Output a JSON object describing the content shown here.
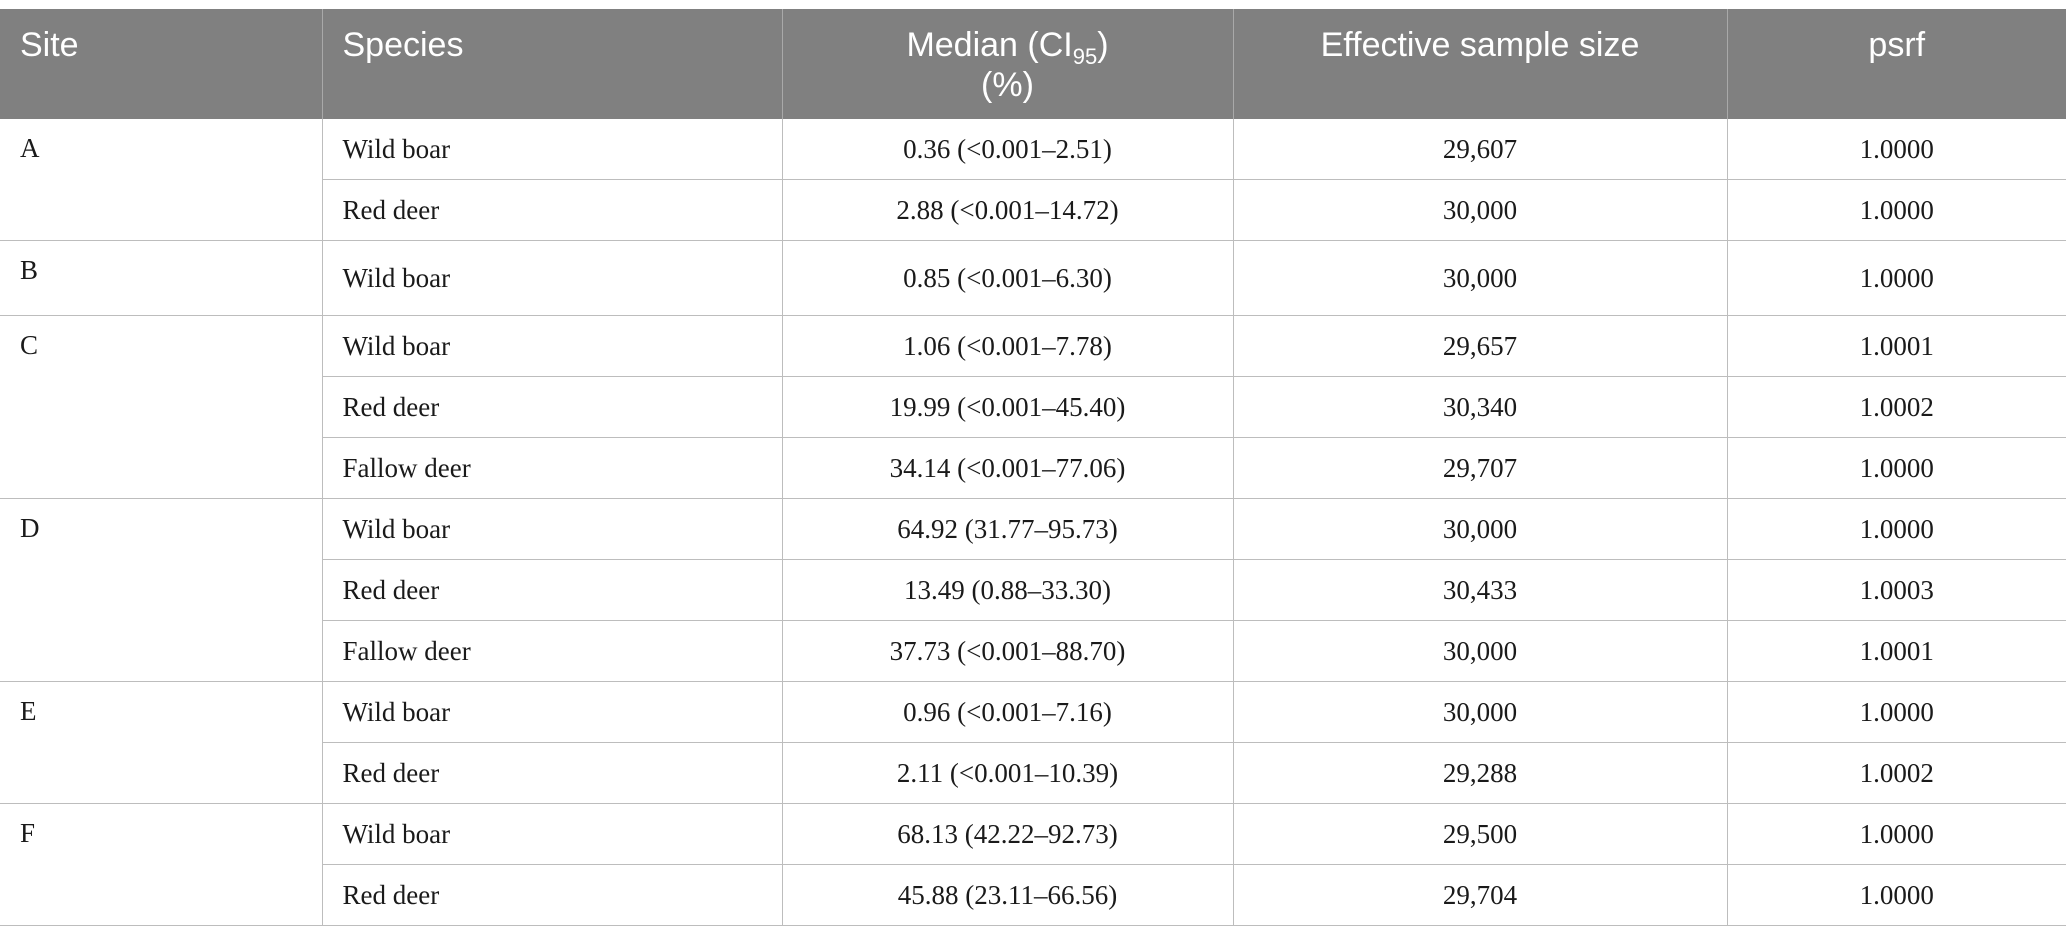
{
  "headers": {
    "site": "Site",
    "species": "Species",
    "median_main": "Median (CI",
    "median_sub": "95",
    "median_close": ")",
    "median_unit": "(%)",
    "ess": "Effective sample size",
    "psrf": "psrf"
  },
  "groups": [
    {
      "site": "A",
      "rows": [
        {
          "species": "Wild boar",
          "median": "0.36 (<0.001–2.51)",
          "ess": "29,607",
          "psrf": "1.0000"
        },
        {
          "species": "Red deer",
          "median": "2.88 (<0.001–14.72)",
          "ess": "30,000",
          "psrf": "1.0000"
        }
      ]
    },
    {
      "site": "B",
      "rows": [
        {
          "species": "Wild boar",
          "median": "0.85 (<0.001–6.30)",
          "ess": "30,000",
          "psrf": "1.0000"
        }
      ]
    },
    {
      "site": "C",
      "rows": [
        {
          "species": "Wild boar",
          "median": "1.06 (<0.001–7.78)",
          "ess": "29,657",
          "psrf": "1.0001"
        },
        {
          "species": "Red deer",
          "median": "19.99 (<0.001–45.40)",
          "ess": "30,340",
          "psrf": "1.0002"
        },
        {
          "species": "Fallow deer",
          "median": "34.14 (<0.001–77.06)",
          "ess": "29,707",
          "psrf": "1.0000"
        }
      ]
    },
    {
      "site": "D",
      "rows": [
        {
          "species": "Wild boar",
          "median": "64.92 (31.77–95.73)",
          "ess": "30,000",
          "psrf": "1.0000"
        },
        {
          "species": "Red deer",
          "median": "13.49 (0.88–33.30)",
          "ess": "30,433",
          "psrf": "1.0003"
        },
        {
          "species": "Fallow deer",
          "median": "37.73 (<0.001–88.70)",
          "ess": "30,000",
          "psrf": "1.0001"
        }
      ]
    },
    {
      "site": "E",
      "rows": [
        {
          "species": "Wild boar",
          "median": "0.96 (<0.001–7.16)",
          "ess": "30,000",
          "psrf": "1.0000"
        },
        {
          "species": "Red deer",
          "median": "2.11 (<0.001–10.39)",
          "ess": "29,288",
          "psrf": "1.0002"
        }
      ]
    },
    {
      "site": "F",
      "rows": [
        {
          "species": "Wild boar",
          "median": "68.13 (42.22–92.73)",
          "ess": "29,500",
          "psrf": "1.0000"
        },
        {
          "species": "Red deer",
          "median": "45.88 (23.11–66.56)",
          "ess": "29,704",
          "psrf": "1.0000"
        }
      ]
    }
  ]
}
